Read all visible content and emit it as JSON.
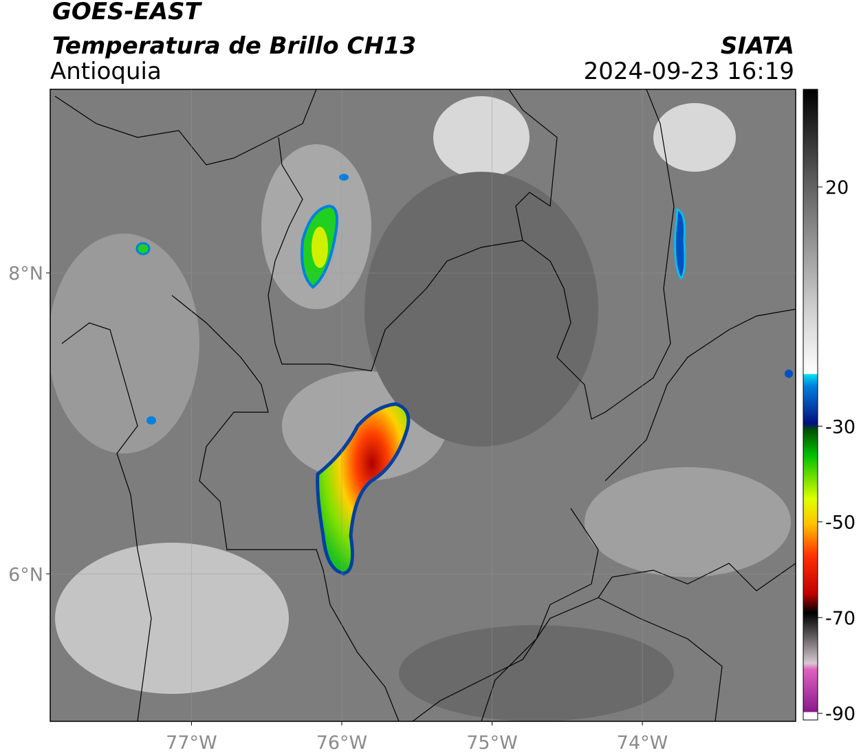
{
  "header": {
    "title": "GOES-EAST",
    "subtitle": "Temperatura de Brillo CH13",
    "org": "SIATA",
    "region": "Antioquia",
    "datetime": "2024-09-23 16:19"
  },
  "map": {
    "xlim": [
      -77.94,
      -72.98
    ],
    "ylim": [
      5.02,
      9.22
    ],
    "xticks": [
      {
        "value": -77,
        "label": "77°W"
      },
      {
        "value": -76,
        "label": "76°W"
      },
      {
        "value": -75,
        "label": "75°W"
      },
      {
        "value": -74,
        "label": "74°W"
      }
    ],
    "yticks": [
      {
        "value": 8,
        "label": "8°N"
      },
      {
        "value": 6,
        "label": "6°N"
      }
    ],
    "grid": true,
    "colorbar": {
      "lim": [
        -91.4,
        40.4
      ],
      "ticks": [
        20,
        -30,
        -50,
        -70,
        -90
      ]
    }
  }
}
